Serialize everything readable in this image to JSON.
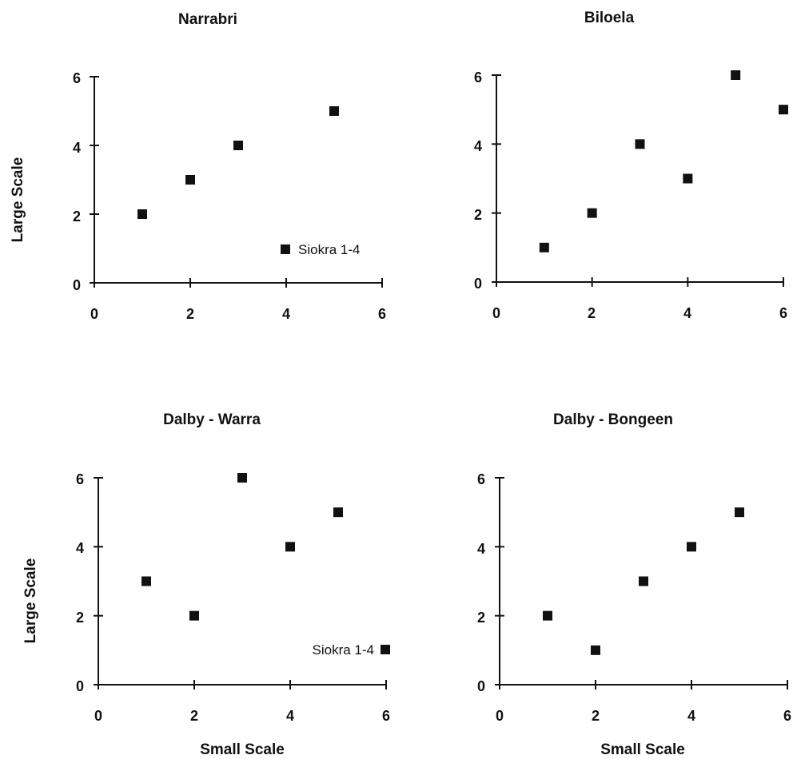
{
  "chart_data": [
    {
      "type": "scatter",
      "title": "Narrabri",
      "xlabel": "",
      "ylabel": "Large Scale",
      "xlim": [
        0,
        6
      ],
      "ylim": [
        0,
        6
      ],
      "xticks": [
        "0",
        "2",
        "4",
        "6"
      ],
      "yticks": [
        "0",
        "2",
        "4",
        "6"
      ],
      "grid": false,
      "points": [
        {
          "x": 1,
          "y": 2
        },
        {
          "x": 2,
          "y": 3
        },
        {
          "x": 3,
          "y": 4
        },
        {
          "x": 5,
          "y": 5
        }
      ],
      "legend": {
        "label": "Siokra 1-4",
        "placement": "bottom-right"
      }
    },
    {
      "type": "scatter",
      "title": "Biloela",
      "xlabel": "",
      "ylabel": "",
      "xlim": [
        0,
        6
      ],
      "ylim": [
        0,
        6
      ],
      "xticks": [
        "0",
        "2",
        "4",
        "6"
      ],
      "yticks": [
        "0",
        "2",
        "4",
        "6"
      ],
      "grid": false,
      "points": [
        {
          "x": 1,
          "y": 1
        },
        {
          "x": 2,
          "y": 2
        },
        {
          "x": 3,
          "y": 4
        },
        {
          "x": 4,
          "y": 3
        },
        {
          "x": 5,
          "y": 6
        },
        {
          "x": 6,
          "y": 5
        }
      ]
    },
    {
      "type": "scatter",
      "title": "Dalby - Warra",
      "xlabel": "Small Scale",
      "ylabel": "Large Scale",
      "xlim": [
        0,
        6
      ],
      "ylim": [
        0,
        6
      ],
      "xticks": [
        "0",
        "2",
        "4",
        "6"
      ],
      "yticks": [
        "0",
        "2",
        "4",
        "6"
      ],
      "grid": false,
      "points": [
        {
          "x": 1,
          "y": 3
        },
        {
          "x": 2,
          "y": 2
        },
        {
          "x": 3,
          "y": 6
        },
        {
          "x": 4,
          "y": 4
        },
        {
          "x": 5,
          "y": 5
        }
      ],
      "legend": {
        "label": "Siokra 1-4",
        "placement": "bottom-right"
      }
    },
    {
      "type": "scatter",
      "title": "Dalby - Bongeen",
      "xlabel": "Small Scale",
      "ylabel": "",
      "xlim": [
        0,
        6
      ],
      "ylim": [
        0,
        6
      ],
      "xticks": [
        "0",
        "2",
        "4",
        "6"
      ],
      "yticks": [
        "0",
        "2",
        "4",
        "6"
      ],
      "grid": false,
      "points": [
        {
          "x": 1,
          "y": 2
        },
        {
          "x": 2,
          "y": 1
        },
        {
          "x": 3,
          "y": 3
        },
        {
          "x": 4,
          "y": 4
        },
        {
          "x": 5,
          "y": 5
        }
      ]
    }
  ]
}
